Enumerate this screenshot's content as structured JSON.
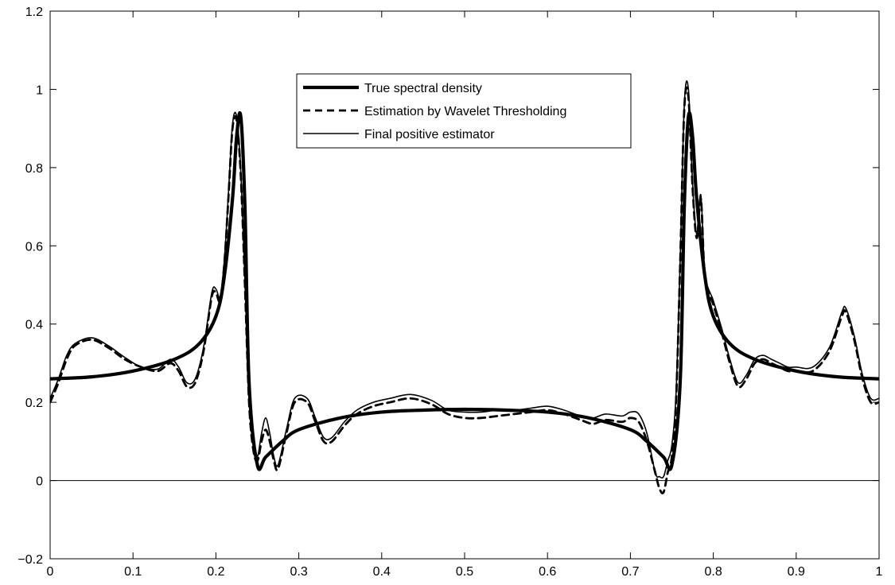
{
  "chart_data": {
    "type": "line",
    "title": "",
    "xlabel": "",
    "ylabel": "",
    "xlim": [
      0,
      1
    ],
    "ylim": [
      -0.2,
      1.2
    ],
    "x_ticks": [
      0,
      0.1,
      0.2,
      0.3,
      0.4,
      0.5,
      0.6,
      0.7,
      0.8,
      0.9,
      1
    ],
    "x_tick_labels": [
      "0",
      "0.1",
      "0.2",
      "0.3",
      "0.4",
      "0.5",
      "0.6",
      "0.7",
      "0.8",
      "0.9",
      "1"
    ],
    "y_ticks": [
      -0.2,
      0,
      0.2,
      0.4,
      0.6,
      0.8,
      1,
      1.2
    ],
    "y_tick_labels": [
      "−0.2",
      "0",
      "0.2",
      "0.4",
      "0.6",
      "0.8",
      "1",
      "1.2"
    ],
    "grid": false,
    "zero_line": true,
    "legend_position": "top-center",
    "series": [
      {
        "name": "True spectral density",
        "style": "thick-solid",
        "color": "#000000",
        "x": [
          0,
          0.05,
          0.1,
          0.15,
          0.18,
          0.2,
          0.21,
          0.22,
          0.225,
          0.23,
          0.235,
          0.24,
          0.25,
          0.26,
          0.28,
          0.3,
          0.35,
          0.4,
          0.45,
          0.5,
          0.55,
          0.6,
          0.65,
          0.7,
          0.72,
          0.74,
          0.75,
          0.76,
          0.765,
          0.77,
          0.775,
          0.78,
          0.79,
          0.8,
          0.82,
          0.85,
          0.9,
          0.95,
          1
        ],
        "y": [
          0.26,
          0.265,
          0.28,
          0.31,
          0.35,
          0.42,
          0.52,
          0.72,
          0.88,
          0.93,
          0.7,
          0.25,
          0.04,
          0.06,
          0.1,
          0.13,
          0.16,
          0.175,
          0.18,
          0.182,
          0.18,
          0.175,
          0.16,
          0.13,
          0.1,
          0.06,
          0.04,
          0.25,
          0.7,
          0.93,
          0.88,
          0.72,
          0.52,
          0.42,
          0.35,
          0.31,
          0.28,
          0.265,
          0.26
        ]
      },
      {
        "name": "Estimation by Wavelet Thresholding",
        "style": "dashed",
        "color": "#000000",
        "x": [
          0,
          0.01,
          0.02,
          0.03,
          0.05,
          0.07,
          0.09,
          0.11,
          0.13,
          0.145,
          0.155,
          0.165,
          0.175,
          0.185,
          0.195,
          0.2,
          0.205,
          0.21,
          0.215,
          0.22,
          0.225,
          0.23,
          0.235,
          0.24,
          0.245,
          0.25,
          0.255,
          0.26,
          0.265,
          0.27,
          0.275,
          0.285,
          0.295,
          0.31,
          0.32,
          0.33,
          0.34,
          0.355,
          0.37,
          0.39,
          0.41,
          0.435,
          0.46,
          0.48,
          0.5,
          0.52,
          0.54,
          0.56,
          0.58,
          0.6,
          0.62,
          0.64,
          0.655,
          0.67,
          0.69,
          0.7,
          0.71,
          0.72,
          0.73,
          0.735,
          0.74,
          0.745,
          0.75,
          0.755,
          0.76,
          0.765,
          0.77,
          0.775,
          0.78,
          0.785,
          0.79,
          0.8,
          0.81,
          0.82,
          0.83,
          0.84,
          0.85,
          0.86,
          0.87,
          0.88,
          0.89,
          0.9,
          0.92,
          0.94,
          0.955,
          0.96,
          0.97,
          0.98,
          0.99,
          1
        ],
        "y": [
          0.2,
          0.25,
          0.31,
          0.345,
          0.36,
          0.34,
          0.31,
          0.29,
          0.28,
          0.3,
          0.28,
          0.24,
          0.25,
          0.33,
          0.47,
          0.48,
          0.46,
          0.55,
          0.72,
          0.9,
          0.92,
          0.78,
          0.5,
          0.2,
          0.08,
          0.05,
          0.1,
          0.13,
          0.1,
          0.05,
          0.03,
          0.12,
          0.2,
          0.2,
          0.15,
          0.1,
          0.1,
          0.14,
          0.17,
          0.19,
          0.2,
          0.21,
          0.195,
          0.17,
          0.16,
          0.16,
          0.165,
          0.17,
          0.175,
          0.18,
          0.17,
          0.155,
          0.145,
          0.155,
          0.15,
          0.16,
          0.15,
          0.1,
          0.02,
          -0.02,
          -0.03,
          0.02,
          0.06,
          0.2,
          0.55,
          0.95,
          0.98,
          0.75,
          0.62,
          0.72,
          0.52,
          0.45,
          0.38,
          0.3,
          0.24,
          0.26,
          0.3,
          0.31,
          0.3,
          0.29,
          0.28,
          0.28,
          0.28,
          0.33,
          0.42,
          0.43,
          0.36,
          0.26,
          0.2,
          0.2
        ]
      },
      {
        "name": "Final positive estimator",
        "style": "thin-solid",
        "color": "#000000",
        "x": [
          0,
          0.01,
          0.02,
          0.03,
          0.05,
          0.07,
          0.09,
          0.11,
          0.13,
          0.145,
          0.155,
          0.165,
          0.175,
          0.185,
          0.195,
          0.2,
          0.205,
          0.21,
          0.215,
          0.22,
          0.225,
          0.23,
          0.235,
          0.24,
          0.245,
          0.25,
          0.255,
          0.26,
          0.265,
          0.27,
          0.275,
          0.285,
          0.295,
          0.31,
          0.32,
          0.33,
          0.34,
          0.355,
          0.37,
          0.39,
          0.41,
          0.435,
          0.46,
          0.48,
          0.5,
          0.52,
          0.54,
          0.56,
          0.58,
          0.6,
          0.62,
          0.64,
          0.655,
          0.67,
          0.69,
          0.7,
          0.71,
          0.72,
          0.73,
          0.735,
          0.74,
          0.745,
          0.75,
          0.755,
          0.76,
          0.765,
          0.77,
          0.775,
          0.78,
          0.785,
          0.79,
          0.8,
          0.81,
          0.82,
          0.83,
          0.84,
          0.85,
          0.86,
          0.87,
          0.88,
          0.89,
          0.9,
          0.92,
          0.94,
          0.955,
          0.96,
          0.97,
          0.98,
          0.99,
          1
        ],
        "y": [
          0.21,
          0.26,
          0.32,
          0.35,
          0.365,
          0.345,
          0.315,
          0.29,
          0.285,
          0.31,
          0.29,
          0.25,
          0.26,
          0.34,
          0.48,
          0.49,
          0.47,
          0.56,
          0.73,
          0.91,
          0.93,
          0.79,
          0.51,
          0.21,
          0.09,
          0.06,
          0.12,
          0.16,
          0.12,
          0.06,
          0.04,
          0.13,
          0.21,
          0.21,
          0.16,
          0.11,
          0.11,
          0.15,
          0.18,
          0.2,
          0.21,
          0.22,
          0.205,
          0.18,
          0.175,
          0.175,
          0.18,
          0.18,
          0.185,
          0.19,
          0.18,
          0.165,
          0.16,
          0.17,
          0.165,
          0.175,
          0.17,
          0.12,
          0.02,
          0.01,
          0.01,
          0.05,
          0.09,
          0.22,
          0.56,
          0.96,
          1.0,
          0.76,
          0.63,
          0.73,
          0.53,
          0.46,
          0.39,
          0.31,
          0.25,
          0.27,
          0.31,
          0.32,
          0.31,
          0.3,
          0.29,
          0.29,
          0.29,
          0.34,
          0.43,
          0.44,
          0.37,
          0.27,
          0.21,
          0.21
        ]
      }
    ]
  }
}
